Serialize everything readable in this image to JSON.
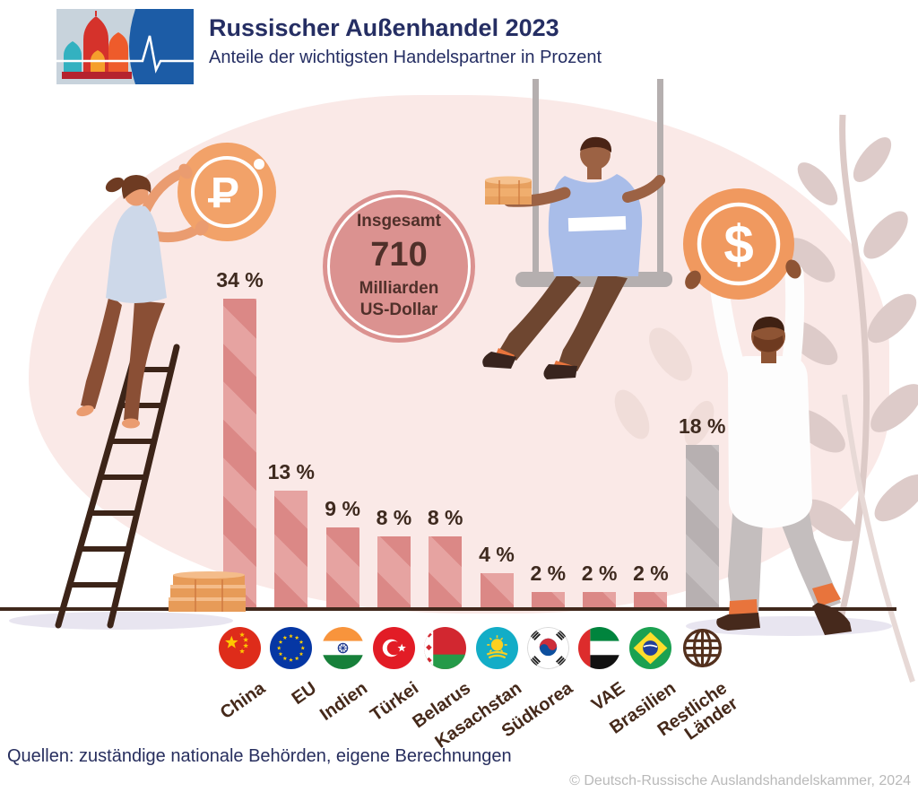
{
  "header": {
    "title": "Russischer Außenhandel 2023",
    "subtitle": "Anteile der wichtigsten Handelspartner in Prozent",
    "logo_icons": [
      "kremlin-domes-icon",
      "heartbeat-line-icon"
    ]
  },
  "total_badge": {
    "label_top": "Insgesamt",
    "value": "710",
    "label_bottom_1": "Milliarden",
    "label_bottom_2": "US-Dollar"
  },
  "chart_data": {
    "type": "bar",
    "title": "Russischer Außenhandel 2023",
    "subtitle": "Anteile der wichtigsten Handelspartner in Prozent",
    "unit": "%",
    "categories": [
      "China",
      "EU",
      "Indien",
      "Türkei",
      "Belarus",
      "Kasachstan",
      "Südkorea",
      "VAE",
      "Brasilien",
      "Restliche Länder"
    ],
    "categories_display": [
      "China",
      "EU",
      "Indien",
      "Türkei",
      "Belarus",
      "Kasachstan",
      "Südkorea",
      "VAE",
      "Brasilien",
      "Restliche\nLänder"
    ],
    "values": [
      34,
      13,
      9,
      8,
      8,
      4,
      2,
      2,
      2,
      18
    ],
    "value_labels": [
      "34 %",
      "13 %",
      "9 %",
      "8 %",
      "8 %",
      "4 %",
      "2 %",
      "2 %",
      "2 %",
      "18 %"
    ],
    "flags": [
      "cn",
      "eu",
      "in",
      "tr",
      "by",
      "kz",
      "kr",
      "ae",
      "br",
      "globe"
    ],
    "flag_names": [
      "china-flag-icon",
      "eu-flag-icon",
      "india-flag-icon",
      "turkey-flag-icon",
      "belarus-flag-icon",
      "kazakhstan-flag-icon",
      "south-korea-flag-icon",
      "uae-flag-icon",
      "brazil-flag-icon",
      "globe-icon"
    ],
    "total_annotation": "Insgesamt 710 Milliarden US-Dollar",
    "ylim": [
      0,
      35
    ],
    "grid": false,
    "legend": false,
    "bar_color": "#db8886",
    "bar_stripe_color": "#e6a3a1",
    "rest_bar_color": "#b7b0b1",
    "rest_stripe_color": "#c6c0c1"
  },
  "footer": {
    "sources": "Quellen: zuständige nationale Behörden, eigene Berechnungen",
    "copyright": "© Deutsch-Russische Auslandshandelskammer, 2024"
  },
  "colors": {
    "background": "#ffffff",
    "blob_pink": "#fae9e7",
    "navy": "#252e63",
    "value_label_brown": "#3e2a1f",
    "category_brown": "#45291a",
    "total_circle": "#db9290",
    "coin_orange": "#f0995f",
    "ground_line": "#40281c",
    "copyright_gray": "#b9b9b9"
  },
  "illustrations": [
    "woman-on-ladder-holding-ruble-coin",
    "man-on-swing-holding-coins",
    "man-holding-dollar-coin",
    "ladder",
    "swing",
    "coin-stacks",
    "plant-leaves"
  ]
}
